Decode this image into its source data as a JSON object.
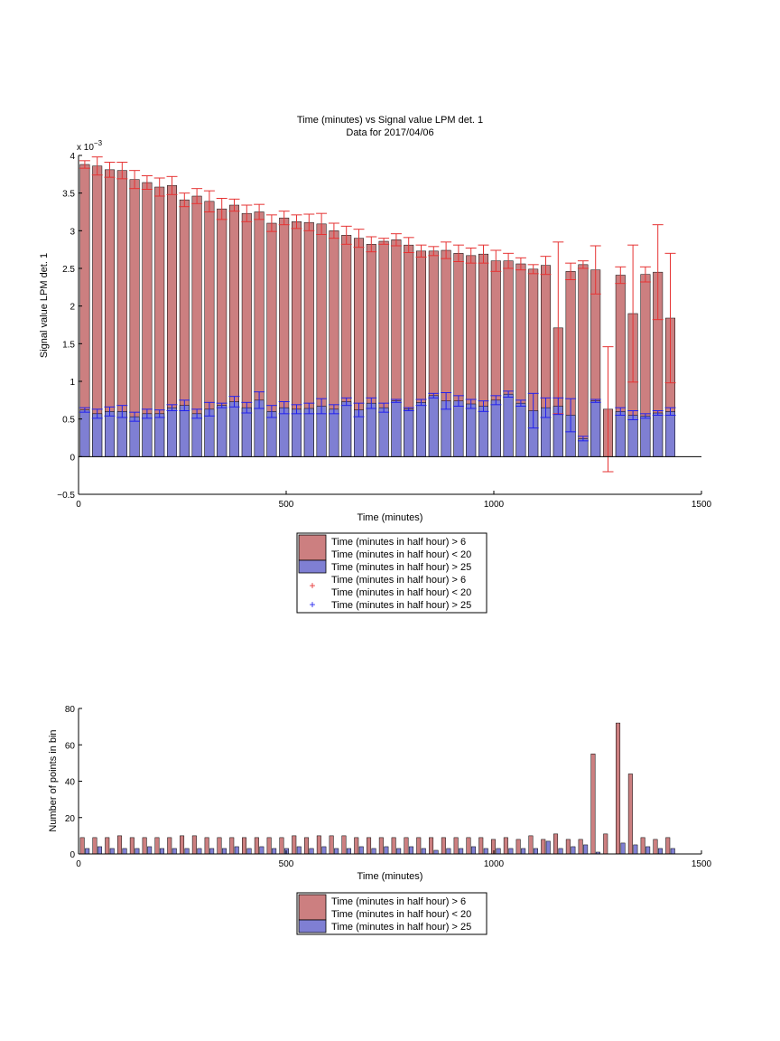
{
  "colors": {
    "red_fill": "#cc7f80",
    "blue_fill": "#7f7fd3",
    "red_err": "#e63333",
    "blue_err": "#2222ee",
    "axis": "#000000"
  },
  "chart_data": [
    {
      "type": "bar",
      "title": "Time (minutes) vs Signal value LPM det. 1",
      "subtitle": "Data for 2017/04/06",
      "xlabel": "Time (minutes)",
      "ylabel": "Signal value LPM det. 1",
      "y_exponent_label": "x 10",
      "y_exponent_power": "−3",
      "xlim": [
        0,
        1500
      ],
      "ylim": [
        -0.5,
        4
      ],
      "xticks": [
        "0",
        "500",
        "1000",
        "1500"
      ],
      "yticks": [
        "−0.5",
        "0",
        "0.5",
        "1",
        "1.5",
        "2",
        "2.5",
        "3",
        "3.5",
        "4"
      ],
      "x": [
        15,
        45,
        75,
        105,
        135,
        165,
        195,
        225,
        255,
        285,
        315,
        345,
        375,
        405,
        435,
        465,
        495,
        525,
        555,
        585,
        615,
        645,
        675,
        705,
        735,
        765,
        795,
        825,
        855,
        885,
        915,
        945,
        975,
        1005,
        1035,
        1065,
        1095,
        1125,
        1155,
        1185,
        1215,
        1245,
        1275,
        1305,
        1335,
        1365,
        1395,
        1425
      ],
      "series": [
        {
          "name": "Time (minutes in half hour) > 6 Time (minutes in half hour) < 20",
          "values": [
            3.88,
            3.86,
            3.81,
            3.8,
            3.68,
            3.64,
            3.58,
            3.6,
            3.41,
            3.46,
            3.39,
            3.29,
            3.34,
            3.23,
            3.25,
            3.1,
            3.17,
            3.12,
            3.11,
            3.09,
            3.0,
            2.94,
            2.9,
            2.82,
            2.86,
            2.88,
            2.81,
            2.73,
            2.73,
            2.74,
            2.7,
            2.67,
            2.69,
            2.6,
            2.6,
            2.56,
            2.49,
            2.54,
            1.71,
            2.46,
            2.55,
            2.48,
            0.63,
            2.41,
            1.9,
            2.42,
            2.45,
            1.84
          ],
          "errors": [
            0.05,
            0.12,
            0.1,
            0.11,
            0.12,
            0.09,
            0.12,
            0.12,
            0.09,
            0.1,
            0.14,
            0.14,
            0.08,
            0.11,
            0.1,
            0.11,
            0.09,
            0.09,
            0.11,
            0.14,
            0.1,
            0.12,
            0.12,
            0.1,
            0.04,
            0.08,
            0.1,
            0.08,
            0.06,
            0.11,
            0.11,
            0.1,
            0.12,
            0.14,
            0.1,
            0.08,
            0.06,
            0.12,
            1.14,
            0.11,
            0.05,
            0.32,
            0.83,
            0.11,
            0.91,
            0.1,
            0.63,
            0.86
          ]
        },
        {
          "name": "Time (minutes in half hour) > 25",
          "values": [
            0.62,
            0.57,
            0.6,
            0.6,
            0.53,
            0.57,
            0.57,
            0.65,
            0.68,
            0.57,
            0.63,
            0.68,
            0.73,
            0.65,
            0.75,
            0.6,
            0.65,
            0.63,
            0.64,
            0.67,
            0.63,
            0.73,
            0.62,
            0.71,
            0.65,
            0.74,
            0.63,
            0.72,
            0.81,
            0.74,
            0.74,
            0.7,
            0.67,
            0.75,
            0.83,
            0.71,
            0.61,
            0.65,
            0.67,
            0.55,
            0.24,
            0.74,
            0.0,
            0.6,
            0.55,
            0.54,
            0.58,
            0.6
          ],
          "errors": [
            0.03,
            0.06,
            0.06,
            0.08,
            0.06,
            0.06,
            0.05,
            0.04,
            0.07,
            0.06,
            0.09,
            0.03,
            0.07,
            0.07,
            0.11,
            0.08,
            0.08,
            0.06,
            0.07,
            0.1,
            0.06,
            0.05,
            0.09,
            0.07,
            0.06,
            0.02,
            0.02,
            0.04,
            0.03,
            0.11,
            0.07,
            0.06,
            0.07,
            0.06,
            0.04,
            0.04,
            0.23,
            0.13,
            0.11,
            0.22,
            0.03,
            0.02,
            0.0,
            0.05,
            0.06,
            0.03,
            0.03,
            0.05
          ]
        }
      ],
      "legend": {
        "placement": "below",
        "entries": [
          {
            "kind": "patch",
            "color": "#cc7f80",
            "lines": [
              "Time (minutes in half hour) > 6",
              "Time (minutes in half hour) < 20"
            ]
          },
          {
            "kind": "patch",
            "color": "#7f7fd3",
            "lines": [
              "Time (minutes in half hour) > 25"
            ]
          },
          {
            "kind": "marker",
            "color": "#e63333",
            "lines": [
              "Time (minutes in half hour) > 6",
              "Time (minutes in half hour) < 20"
            ]
          },
          {
            "kind": "marker",
            "color": "#2222ee",
            "lines": [
              "Time (minutes in half hour) > 25"
            ]
          }
        ]
      }
    },
    {
      "type": "bar",
      "xlabel": "Time (minutes)",
      "ylabel": "Number of points in bin",
      "xlim": [
        0,
        1500
      ],
      "ylim": [
        0,
        80
      ],
      "xticks": [
        "0",
        "500",
        "1000",
        "1500"
      ],
      "yticks": [
        "0",
        "20",
        "40",
        "60",
        "80"
      ],
      "x": [
        15,
        45,
        75,
        105,
        135,
        165,
        195,
        225,
        255,
        285,
        315,
        345,
        375,
        405,
        435,
        465,
        495,
        525,
        555,
        585,
        615,
        645,
        675,
        705,
        735,
        765,
        795,
        825,
        855,
        885,
        915,
        945,
        975,
        1005,
        1035,
        1065,
        1095,
        1125,
        1155,
        1185,
        1215,
        1245,
        1275,
        1305,
        1335,
        1365,
        1395,
        1425
      ],
      "series": [
        {
          "name": "Time (minutes in half hour) > 6 Time (minutes in half hour) < 20",
          "values": [
            9,
            9,
            9,
            10,
            9,
            9,
            9,
            9,
            10,
            10,
            9,
            9,
            9,
            9,
            9,
            9,
            9,
            10,
            9,
            10,
            10,
            10,
            9,
            9,
            9,
            9,
            9,
            9,
            9,
            9,
            9,
            9,
            9,
            8,
            9,
            8,
            10,
            8,
            11,
            8,
            8,
            55,
            11,
            72,
            44,
            9,
            8,
            9
          ]
        },
        {
          "name": "Time (minutes in half hour) > 25",
          "values": [
            3,
            4,
            3,
            3,
            3,
            4,
            3,
            3,
            3,
            3,
            3,
            3,
            4,
            3,
            4,
            3,
            3,
            4,
            3,
            4,
            3,
            3,
            4,
            3,
            4,
            3,
            4,
            3,
            2,
            3,
            3,
            4,
            3,
            3,
            3,
            3,
            3,
            7,
            3,
            4,
            5,
            1,
            0,
            6,
            5,
            4,
            3,
            3
          ]
        }
      ],
      "legend": {
        "placement": "below",
        "entries": [
          {
            "kind": "patch",
            "color": "#cc7f80",
            "lines": [
              "Time (minutes in half hour) > 6",
              "Time (minutes in half hour) < 20"
            ]
          },
          {
            "kind": "patch",
            "color": "#7f7fd3",
            "lines": [
              "Time (minutes in half hour) > 25"
            ]
          }
        ]
      }
    }
  ]
}
